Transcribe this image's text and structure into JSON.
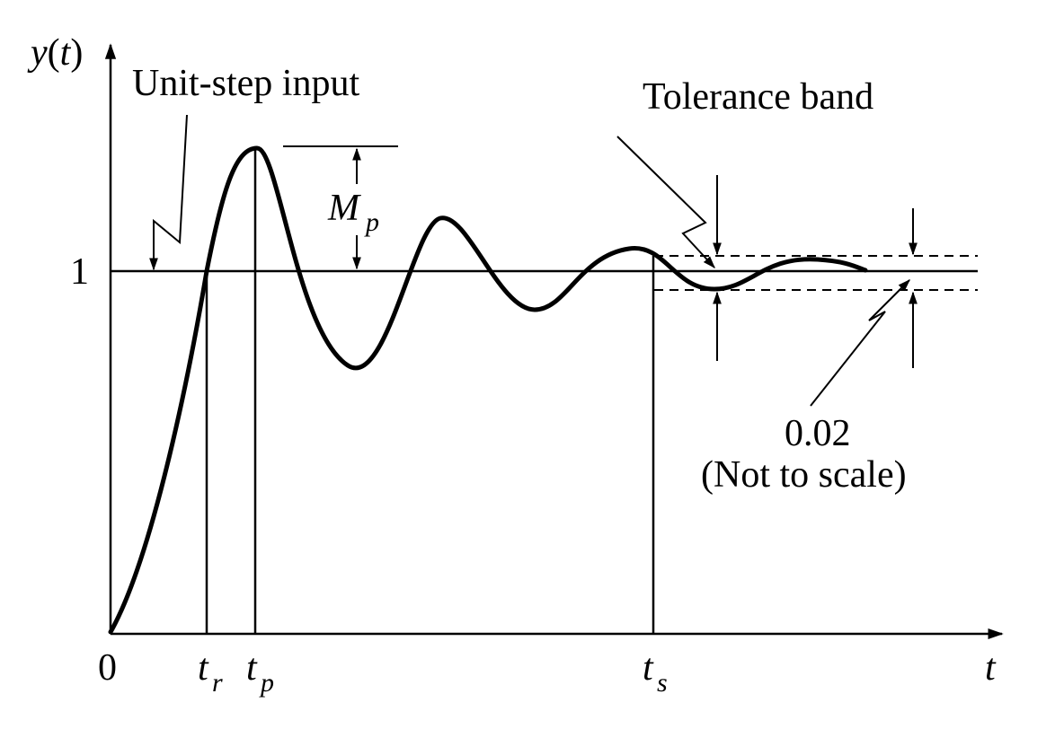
{
  "labels": {
    "y_axis": "y(t)",
    "y_axis_func": "y",
    "y_axis_paren_open": "(",
    "y_axis_arg": "t",
    "y_axis_paren_close": ")",
    "x_axis": "t",
    "origin": "0",
    "level_one": "1",
    "unit_step": "Unit-step input",
    "tolerance_band": "Tolerance band",
    "overshoot_main": "M",
    "overshoot_sub": "p",
    "rise_time_main": "t",
    "rise_time_sub": "r",
    "peak_time_main": "t",
    "peak_time_sub": "p",
    "settling_time_main": "t",
    "settling_time_sub": "s",
    "tolerance_value": "0.02",
    "scale_note": "(Not to scale)"
  },
  "colors": {
    "ink": "#000000",
    "background": "#ffffff"
  }
}
